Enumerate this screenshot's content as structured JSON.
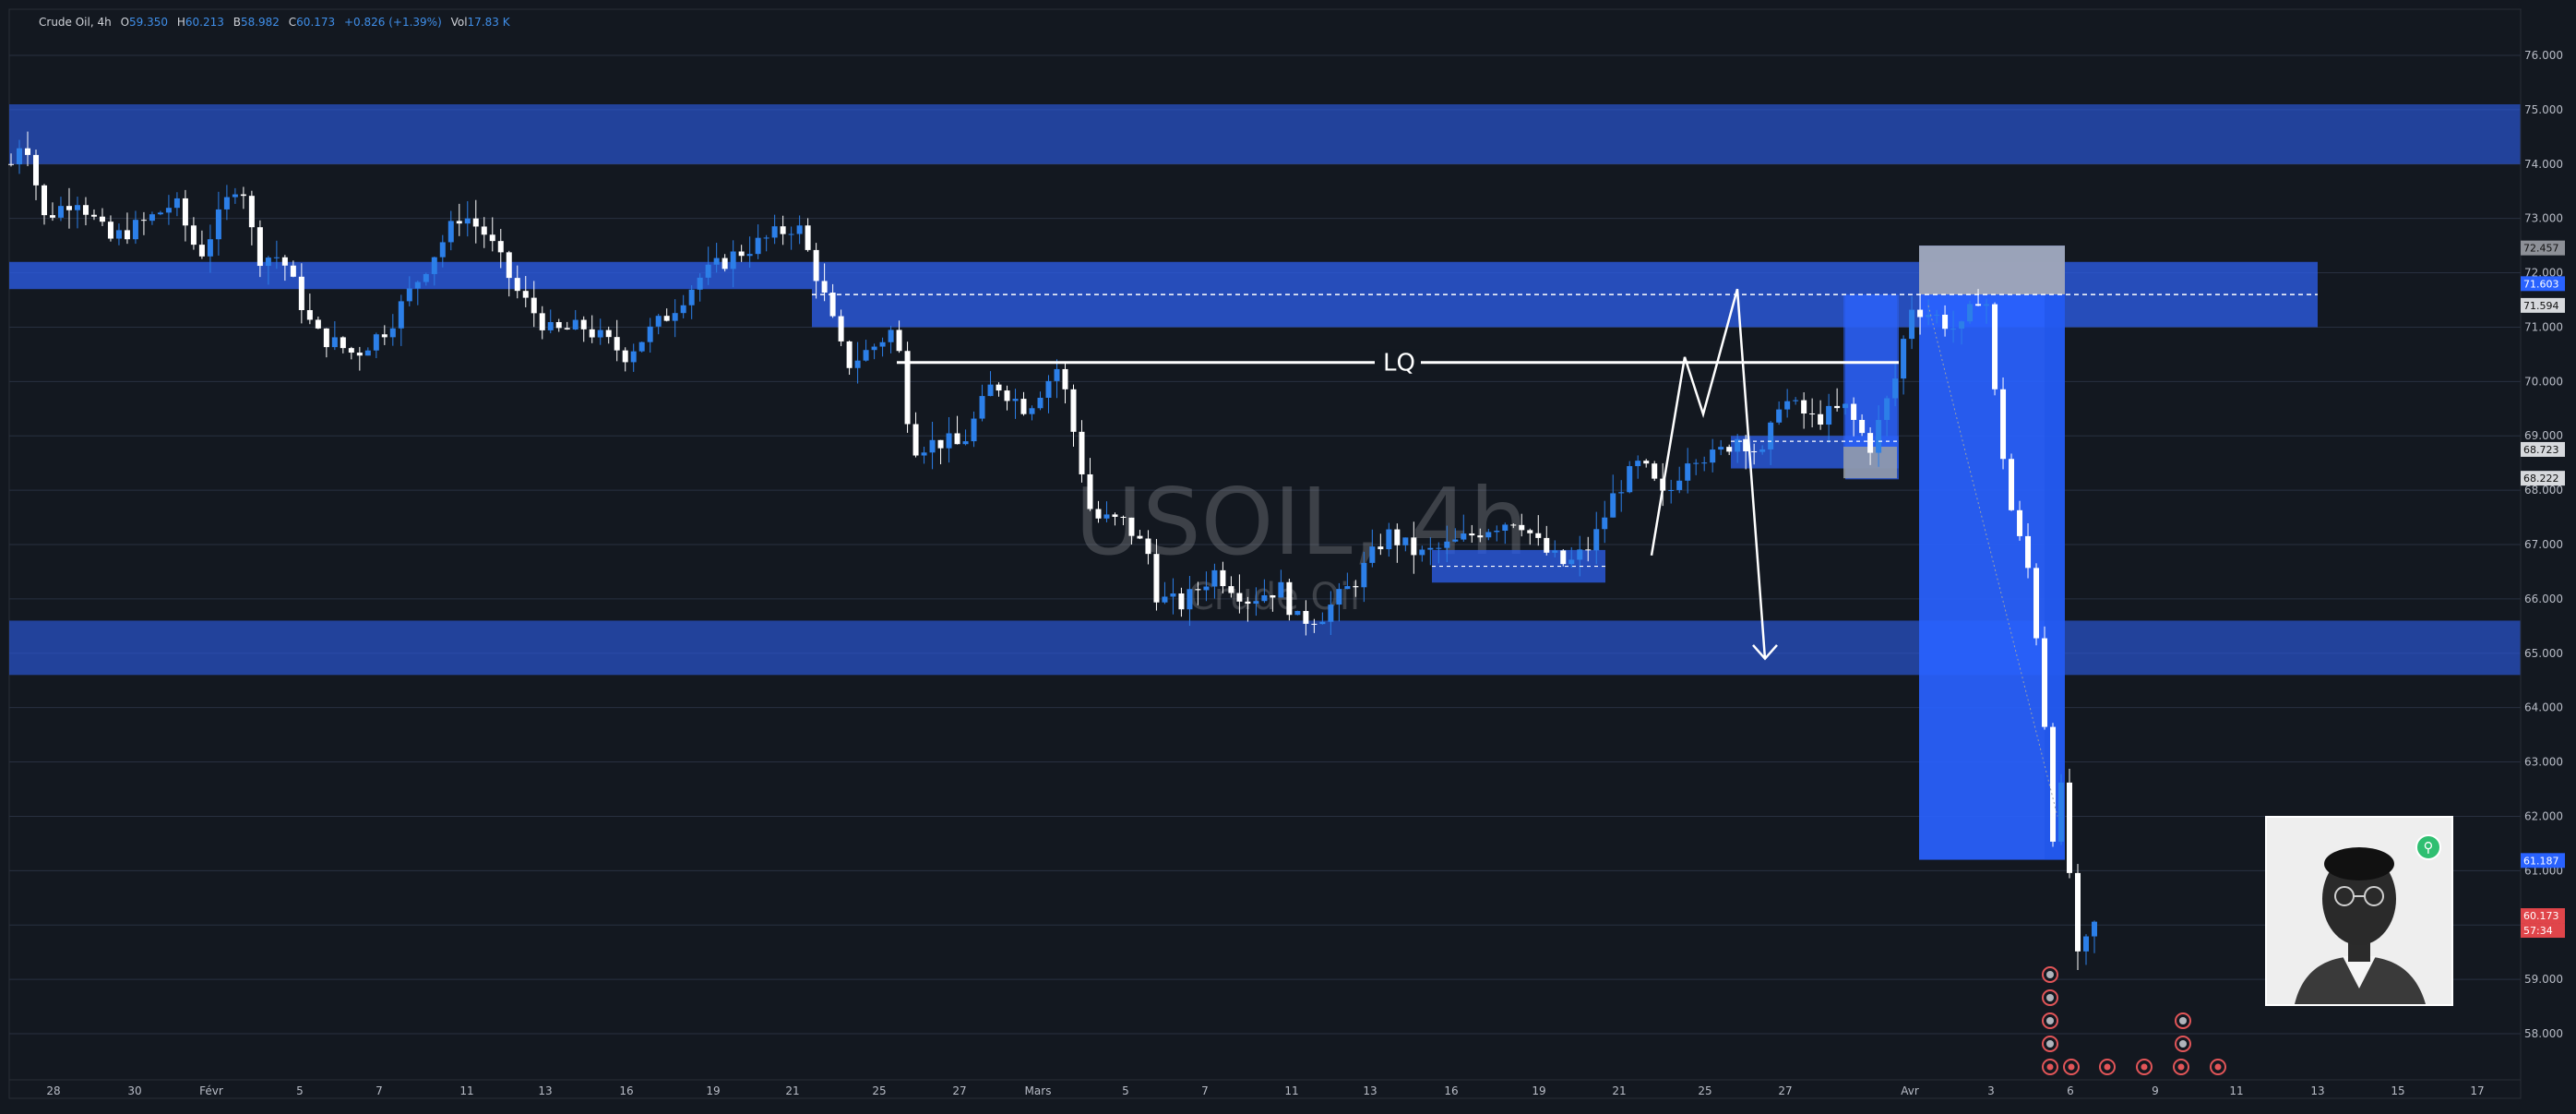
{
  "header": {
    "symbol": "Crude Oil",
    "interval": "4h",
    "open_label": "O",
    "open": "59.350",
    "high_label": "H",
    "high": "60.213",
    "low_label": "B",
    "low": "58.982",
    "close_label": "C",
    "close": "60.173",
    "change": "+0.826 (+1.39%)",
    "volume_label": "Vol",
    "volume": "17.83 K"
  },
  "watermark": {
    "title": "USOIL, 4h",
    "subtitle": "Crude Oil"
  },
  "annotation": {
    "lq_label": "LQ"
  },
  "price_axis": {
    "labels": [
      "76.000",
      "75.000",
      "74.000",
      "73.000",
      "72.000",
      "71.000",
      "70.000",
      "69.000",
      "68.000",
      "67.000",
      "66.000",
      "65.000",
      "64.000",
      "63.000",
      "62.000",
      "61.000",
      "60.000",
      "59.000",
      "58.000"
    ],
    "markers": [
      {
        "value": "72.457",
        "kind": "gray"
      },
      {
        "value": "71.603",
        "kind": "blue"
      },
      {
        "value": "71.594",
        "kind": "white"
      },
      {
        "value": "68.723",
        "kind": "white"
      },
      {
        "value": "68.222",
        "kind": "white"
      },
      {
        "value": "61.187",
        "kind": "blue"
      },
      {
        "value": "60.173",
        "kind": "red"
      },
      {
        "value": "57:34",
        "kind": "red"
      }
    ]
  },
  "time_axis": {
    "labels": [
      "28",
      "30",
      "Févr",
      "5",
      "7",
      "11",
      "13",
      "16",
      "19",
      "21",
      "25",
      "27",
      "Mars",
      "5",
      "7",
      "11",
      "13",
      "16",
      "19",
      "21",
      "25",
      "27",
      "Avr",
      "3",
      "6",
      "9",
      "11",
      "13",
      "15",
      "17"
    ]
  },
  "chart_data": {
    "type": "candlestick",
    "symbol": "USOIL",
    "interval": "4h",
    "ylim": [
      57.3,
      76.6
    ],
    "price_ticks": [
      76,
      75,
      74,
      73,
      72,
      71,
      70,
      69,
      68,
      67,
      66,
      65,
      64,
      63,
      62,
      61,
      60,
      59,
      58
    ],
    "x_ticks": [
      "28",
      "30",
      "Févr",
      "5",
      "7",
      "11",
      "13",
      "16",
      "19",
      "21",
      "25",
      "27",
      "Mars",
      "5",
      "7",
      "11",
      "13",
      "16",
      "19",
      "21",
      "25",
      "27",
      "Avr",
      "3",
      "6",
      "9",
      "11",
      "13",
      "15",
      "17"
    ],
    "path_anchors": [
      [
        0,
        74.0
      ],
      [
        8,
        74.6
      ],
      [
        20,
        73.0
      ],
      [
        40,
        73.4
      ],
      [
        60,
        72.6
      ],
      [
        80,
        72.9
      ],
      [
        100,
        73.3
      ],
      [
        115,
        72.3
      ],
      [
        130,
        73.2
      ],
      [
        140,
        73.8
      ],
      [
        150,
        72.3
      ],
      [
        165,
        72.3
      ],
      [
        185,
        70.9
      ],
      [
        210,
        70.5
      ],
      [
        230,
        71.0
      ],
      [
        255,
        72.2
      ],
      [
        275,
        73.1
      ],
      [
        290,
        72.7
      ],
      [
        310,
        71.6
      ],
      [
        330,
        70.9
      ],
      [
        350,
        71.0
      ],
      [
        375,
        70.5
      ],
      [
        400,
        71.2
      ],
      [
        420,
        71.9
      ],
      [
        440,
        72.3
      ],
      [
        460,
        72.6
      ],
      [
        480,
        72.9
      ],
      [
        495,
        71.7
      ],
      [
        510,
        70.3
      ],
      [
        525,
        70.6
      ],
      [
        540,
        71.0
      ],
      [
        550,
        68.8
      ],
      [
        570,
        68.9
      ],
      [
        580,
        68.8
      ],
      [
        600,
        70.0
      ],
      [
        620,
        69.5
      ],
      [
        640,
        70.3
      ],
      [
        660,
        67.5
      ],
      [
        680,
        67.4
      ],
      [
        695,
        66.8
      ],
      [
        700,
        66.0
      ],
      [
        715,
        65.9
      ],
      [
        735,
        66.5
      ],
      [
        755,
        66.0
      ],
      [
        775,
        66.2
      ],
      [
        785,
        65.6
      ],
      [
        800,
        65.7
      ],
      [
        820,
        66.3
      ],
      [
        840,
        67.2
      ],
      [
        860,
        66.8
      ],
      [
        880,
        67.0
      ],
      [
        900,
        67.3
      ],
      [
        920,
        67.5
      ],
      [
        935,
        66.9
      ],
      [
        950,
        66.6
      ],
      [
        965,
        67.0
      ],
      [
        980,
        68.0
      ],
      [
        995,
        68.5
      ],
      [
        1010,
        67.8
      ],
      [
        1025,
        68.7
      ],
      [
        1040,
        68.6
      ],
      [
        1055,
        69.0
      ],
      [
        1070,
        68.6
      ],
      [
        1080,
        69.7
      ],
      [
        1100,
        69.3
      ],
      [
        1120,
        69.5
      ],
      [
        1135,
        68.8
      ],
      [
        1150,
        70.0
      ],
      [
        1160,
        71.4
      ],
      [
        1175,
        71.2
      ],
      [
        1190,
        70.9
      ],
      [
        1205,
        71.8
      ],
      [
        1212,
        69.5
      ],
      [
        1222,
        67.5
      ],
      [
        1232,
        66.5
      ],
      [
        1240,
        64.5
      ],
      [
        1246,
        61.6
      ],
      [
        1252,
        62.5
      ],
      [
        1262,
        59.3
      ],
      [
        1272,
        60.0
      ]
    ],
    "candle_count": 252,
    "zones": [
      {
        "from_date": "start",
        "to_date": "end",
        "low": 74.0,
        "high": 75.1
      },
      {
        "from_date": "start",
        "to_date": "21 Feb",
        "low": 71.7,
        "high": 72.2
      },
      {
        "from_date": "21 Feb",
        "to_date": "13 Apr",
        "low": 71.0,
        "high": 72.2
      },
      {
        "from_date": "start",
        "to_date": "end",
        "low": 64.6,
        "high": 65.6
      },
      {
        "from_date": "14 Mar",
        "to_date": "20 Mar",
        "low": 66.3,
        "high": 66.9
      },
      {
        "from_date": "25 Mar",
        "to_date": "end Mar",
        "low": 68.4,
        "high": 69.0
      },
      {
        "from_date": "end Mar",
        "to_date": "end Mar",
        "low": 68.2,
        "high": 71.6
      },
      {
        "from_date": "1 Apr",
        "to_date": "5 Apr",
        "low": 61.2,
        "high": 72.5
      }
    ],
    "levels": [
      {
        "name": "LQ",
        "value": 70.35
      },
      {
        "value": 71.6,
        "style": "dashed"
      },
      {
        "value": 66.6,
        "style": "dashed"
      },
      {
        "value": 68.9,
        "style": "dashed"
      }
    ],
    "last_price": 60.173,
    "ref_price_blue": 61.187
  }
}
